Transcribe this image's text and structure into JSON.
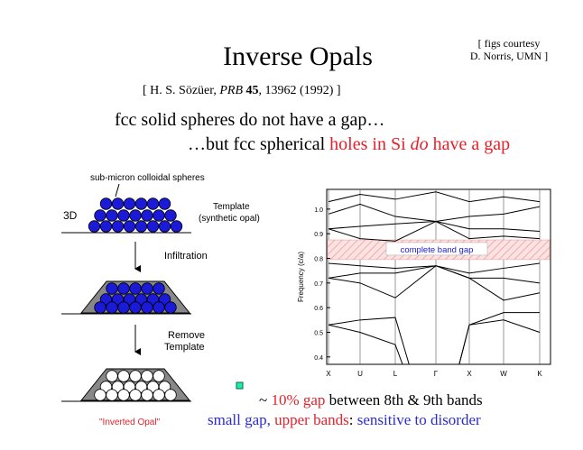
{
  "slide": {
    "title": "Inverse Opals",
    "courtesy": [
      "[ figs courtesy",
      "D. Norris, UMN ]"
    ],
    "citation": [
      "[ H. S. Sözüer, ",
      "PRB",
      " 45",
      ", 13962 (1992) ]"
    ],
    "line1": "fcc solid spheres do not have a gap…",
    "line2": [
      "…but fcc spherical ",
      "holes in Si ",
      "do",
      " have a gap"
    ],
    "diagram": {
      "spheres_label": "sub-micron colloidal spheres",
      "dim": "3D",
      "template": [
        "Template",
        "(synthetic opal)"
      ],
      "step1": "Infiltration",
      "step2": [
        "Remove",
        "Template"
      ],
      "result": "\"Inverted Opal\""
    },
    "band_chart": {
      "type": "line",
      "ylabel": "Frequency (c/a)",
      "categories": [
        "X",
        "U",
        "L",
        "Γ",
        "X",
        "W",
        "K"
      ],
      "ylim": [
        0.37,
        1.08
      ],
      "yticks": [
        0.4,
        0.5,
        0.6,
        0.7,
        0.8,
        0.9,
        {
          "value": 1,
          "label": "1.0"
        }
      ],
      "color": "#000000",
      "bands": [
        {
          "values": [
            0.53,
            0.5,
            0.45,
            0,
            0.53,
            0.55,
            0.5
          ]
        },
        {
          "values": [
            0.53,
            0.55,
            0.56,
            0,
            0.53,
            0.58,
            0.58
          ]
        },
        {
          "values": [
            0.72,
            0.7,
            0.64,
            0.77,
            0.72,
            0.63,
            0.66
          ]
        },
        {
          "values": [
            0.72,
            0.74,
            0.74,
            0.77,
            0.72,
            0.72,
            0.7
          ]
        },
        {
          "values": [
            0.78,
            0.77,
            0.76,
            0.77,
            0.74,
            0.76,
            0.78
          ]
        },
        {
          "values": [
            0.92,
            0.88,
            0.87,
            0.95,
            0.88,
            0.89,
            0.88
          ]
        },
        {
          "values": [
            0.92,
            0.93,
            0.94,
            0.95,
            0.92,
            0.92,
            0.91
          ]
        },
        {
          "values": [
            0.98,
            1.02,
            0.97,
            0.95,
            0.97,
            0.98,
            1.01
          ]
        },
        {
          "values": [
            1.03,
            1.06,
            1.04,
            1.07,
            1.03,
            1.05,
            1.03
          ]
        }
      ],
      "gap": [
        0.795,
        0.875
      ],
      "gap_label": "complete band gap"
    },
    "bullet1": [
      "~ ",
      "10% gap",
      " between 8th & 9th bands"
    ],
    "bullet2": [
      "small gap, ",
      "upper bands",
      ": ",
      "sensitive to disorder"
    ]
  }
}
